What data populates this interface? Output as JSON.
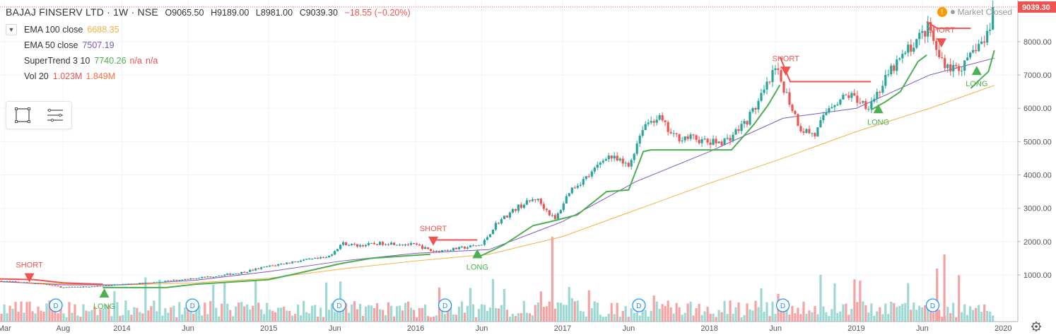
{
  "header": {
    "symbol": "BAJAJ FINSERV LTD · 1W · NSE",
    "open": "O9065.50",
    "high": "H9189.00",
    "low": "L8981.00",
    "close": "C9039.30",
    "change": "−18.55 (−0.20%)"
  },
  "market_status": "Market Closed",
  "legend": {
    "collapse_icon": "chevron-down-icon",
    "ema100": {
      "label": "EMA 100 close",
      "value": "6688.35",
      "color": "#f5b041"
    },
    "ema50": {
      "label": "EMA 50 close",
      "value": "7507.19",
      "color": "#7e57c2"
    },
    "supertrend": {
      "label": "SuperTrend 3 10",
      "value": "7740.26",
      "v2": "n/a",
      "v3": "n/a",
      "c1": "#4caf50",
      "c2": "#ef5350"
    },
    "vol": {
      "label": "Vol 20",
      "value": "1.023M",
      "value2": "1.849M",
      "c1": "#ef5350",
      "c2": "#ff7043"
    }
  },
  "toolbox": {
    "icons": [
      "rectangle-tool-icon",
      "list-tool-icon"
    ]
  },
  "colors": {
    "up": "#26a69a",
    "down": "#ef5350",
    "vol_up": "#9ed8d2",
    "vol_down": "#f5a3a2",
    "ema100": "#f5b041",
    "ema50": "#7e57c2",
    "st_up": "#4caf50",
    "st_down": "#ef5350",
    "price_tag": "#ef5350",
    "dividend": "#2196f3"
  },
  "chart_data": {
    "type": "candlestick",
    "symbol": "BAJAJ FINSERV LTD",
    "interval": "1W",
    "last_price": 9039.3,
    "price_tag_label": "9039.30",
    "y_axis": {
      "ticks": [
        1000,
        2000,
        3000,
        4000,
        5000,
        6000,
        7000,
        8000
      ],
      "tick_labels": [
        "1000.00",
        "2000.00",
        "3000.00",
        "4000.00",
        "5000.00",
        "6000.00",
        "7000.00",
        "8000.00"
      ],
      "range": [
        -400,
        9250
      ]
    },
    "x_axis": {
      "labels": [
        "Mar",
        "Aug",
        "2014",
        "Jun",
        "2015",
        "Jun",
        "2016",
        "Jun",
        "2017",
        "Jun",
        "2018",
        "Jun",
        "2019",
        "Jun",
        "2020"
      ],
      "positions": [
        2013.2,
        2013.6,
        2014.0,
        2014.45,
        2015.0,
        2015.45,
        2016.0,
        2016.45,
        2017.0,
        2017.45,
        2018.0,
        2018.45,
        2019.0,
        2019.45,
        2020.0
      ],
      "range": [
        2013.17,
        2020.1
      ]
    },
    "price_keyframes": [
      [
        2013.17,
        820
      ],
      [
        2013.3,
        780
      ],
      [
        2013.45,
        740
      ],
      [
        2013.6,
        620
      ],
      [
        2013.8,
        650
      ],
      [
        2014.0,
        720
      ],
      [
        2014.2,
        760
      ],
      [
        2014.4,
        860
      ],
      [
        2014.6,
        950
      ],
      [
        2014.8,
        1060
      ],
      [
        2015.0,
        1260
      ],
      [
        2015.2,
        1420
      ],
      [
        2015.4,
        1520
      ],
      [
        2015.5,
        1950
      ],
      [
        2015.6,
        1880
      ],
      [
        2015.8,
        1960
      ],
      [
        2016.0,
        1900
      ],
      [
        2016.12,
        1700
      ],
      [
        2016.3,
        1800
      ],
      [
        2016.45,
        1900
      ],
      [
        2016.55,
        2550
      ],
      [
        2016.7,
        3050
      ],
      [
        2016.82,
        3300
      ],
      [
        2016.95,
        2650
      ],
      [
        2017.05,
        3550
      ],
      [
        2017.2,
        4050
      ],
      [
        2017.3,
        4600
      ],
      [
        2017.45,
        4250
      ],
      [
        2017.55,
        5500
      ],
      [
        2017.65,
        5750
      ],
      [
        2017.75,
        5150
      ],
      [
        2017.9,
        5100
      ],
      [
        2018.0,
        4950
      ],
      [
        2018.12,
        5050
      ],
      [
        2018.25,
        5600
      ],
      [
        2018.35,
        6300
      ],
      [
        2018.45,
        7150
      ],
      [
        2018.5,
        6700
      ],
      [
        2018.62,
        5400
      ],
      [
        2018.72,
        5200
      ],
      [
        2018.82,
        6100
      ],
      [
        2018.95,
        6400
      ],
      [
        2019.08,
        6100
      ],
      [
        2019.15,
        6500
      ],
      [
        2019.25,
        7200
      ],
      [
        2019.4,
        8000
      ],
      [
        2019.5,
        8450
      ],
      [
        2019.55,
        7600
      ],
      [
        2019.65,
        7200
      ],
      [
        2019.75,
        7300
      ],
      [
        2019.82,
        7900
      ],
      [
        2019.88,
        8000
      ],
      [
        2019.94,
        9039
      ]
    ],
    "ema100": [
      [
        2013.17,
        790
      ],
      [
        2013.6,
        730
      ],
      [
        2014.0,
        700
      ],
      [
        2014.5,
        760
      ],
      [
        2015.0,
        900
      ],
      [
        2015.5,
        1180
      ],
      [
        2016.0,
        1420
      ],
      [
        2016.5,
        1620
      ],
      [
        2017.0,
        2150
      ],
      [
        2017.5,
        2950
      ],
      [
        2018.0,
        3750
      ],
      [
        2018.5,
        4500
      ],
      [
        2019.0,
        5300
      ],
      [
        2019.5,
        6000
      ],
      [
        2019.94,
        6688
      ]
    ],
    "ema50": [
      [
        2013.17,
        800
      ],
      [
        2013.6,
        700
      ],
      [
        2014.0,
        700
      ],
      [
        2014.5,
        840
      ],
      [
        2015.0,
        1100
      ],
      [
        2015.5,
        1420
      ],
      [
        2016.0,
        1650
      ],
      [
        2016.5,
        1760
      ],
      [
        2017.0,
        2600
      ],
      [
        2017.5,
        3800
      ],
      [
        2018.0,
        4700
      ],
      [
        2018.5,
        5700
      ],
      [
        2019.0,
        6000
      ],
      [
        2019.5,
        7000
      ],
      [
        2019.94,
        7507
      ]
    ],
    "supertrend_up": [
      [
        [
          2013.87,
          620
        ],
        [
          2014.3,
          620
        ],
        [
          2014.5,
          720
        ],
        [
          2015.0,
          860
        ],
        [
          2015.2,
          1050
        ],
        [
          2015.5,
          1350
        ],
        [
          2015.7,
          1500
        ],
        [
          2016.1,
          1620
        ]
      ],
      [
        [
          2016.42,
          1520
        ],
        [
          2016.6,
          1900
        ],
        [
          2016.8,
          2480
        ],
        [
          2016.9,
          2580
        ],
        [
          2017.1,
          2800
        ],
        [
          2017.3,
          3500
        ],
        [
          2017.45,
          3550
        ],
        [
          2017.55,
          4700
        ],
        [
          2017.6,
          4750
        ],
        [
          2018.0,
          4750
        ],
        [
          2018.15,
          4750
        ],
        [
          2018.3,
          5500
        ],
        [
          2018.4,
          6100
        ],
        [
          2018.48,
          6700
        ]
      ],
      [
        [
          2019.1,
          5950
        ],
        [
          2019.2,
          6200
        ],
        [
          2019.3,
          6500
        ],
        [
          2019.42,
          7400
        ],
        [
          2019.48,
          7600
        ]
      ],
      [
        [
          2019.78,
          6600
        ],
        [
          2019.85,
          6900
        ],
        [
          2019.9,
          7100
        ],
        [
          2019.94,
          7740
        ]
      ]
    ],
    "supertrend_down": [
      [
        [
          2013.17,
          880
        ],
        [
          2013.4,
          860
        ],
        [
          2013.6,
          760
        ],
        [
          2013.87,
          720
        ]
      ],
      [
        [
          2016.1,
          2050
        ],
        [
          2016.42,
          2050
        ]
      ],
      [
        [
          2018.48,
          7550
        ],
        [
          2018.55,
          6800
        ],
        [
          2019.1,
          6800
        ]
      ],
      [
        [
          2019.48,
          8600
        ],
        [
          2019.55,
          8400
        ],
        [
          2019.78,
          8400
        ]
      ]
    ],
    "signals": [
      {
        "type": "SHORT",
        "x": 2013.37,
        "y": 1050
      },
      {
        "type": "LONG",
        "x": 2013.88,
        "y": 320
      },
      {
        "type": "SHORT",
        "x": 2016.12,
        "y": 2150
      },
      {
        "type": "LONG",
        "x": 2016.42,
        "y": 1500
      },
      {
        "type": "SHORT",
        "x": 2018.52,
        "y": 7250
      },
      {
        "type": "LONG",
        "x": 2019.15,
        "y": 5850
      },
      {
        "type": "SHORT",
        "x": 2019.58,
        "y": 8100
      },
      {
        "type": "LONG",
        "x": 2019.82,
        "y": 7000
      }
    ],
    "dividend_markers": {
      "label": "D",
      "x": [
        2013.55,
        2014.48,
        2015.48,
        2016.2,
        2017.52,
        2018.5,
        2019.52
      ]
    }
  }
}
